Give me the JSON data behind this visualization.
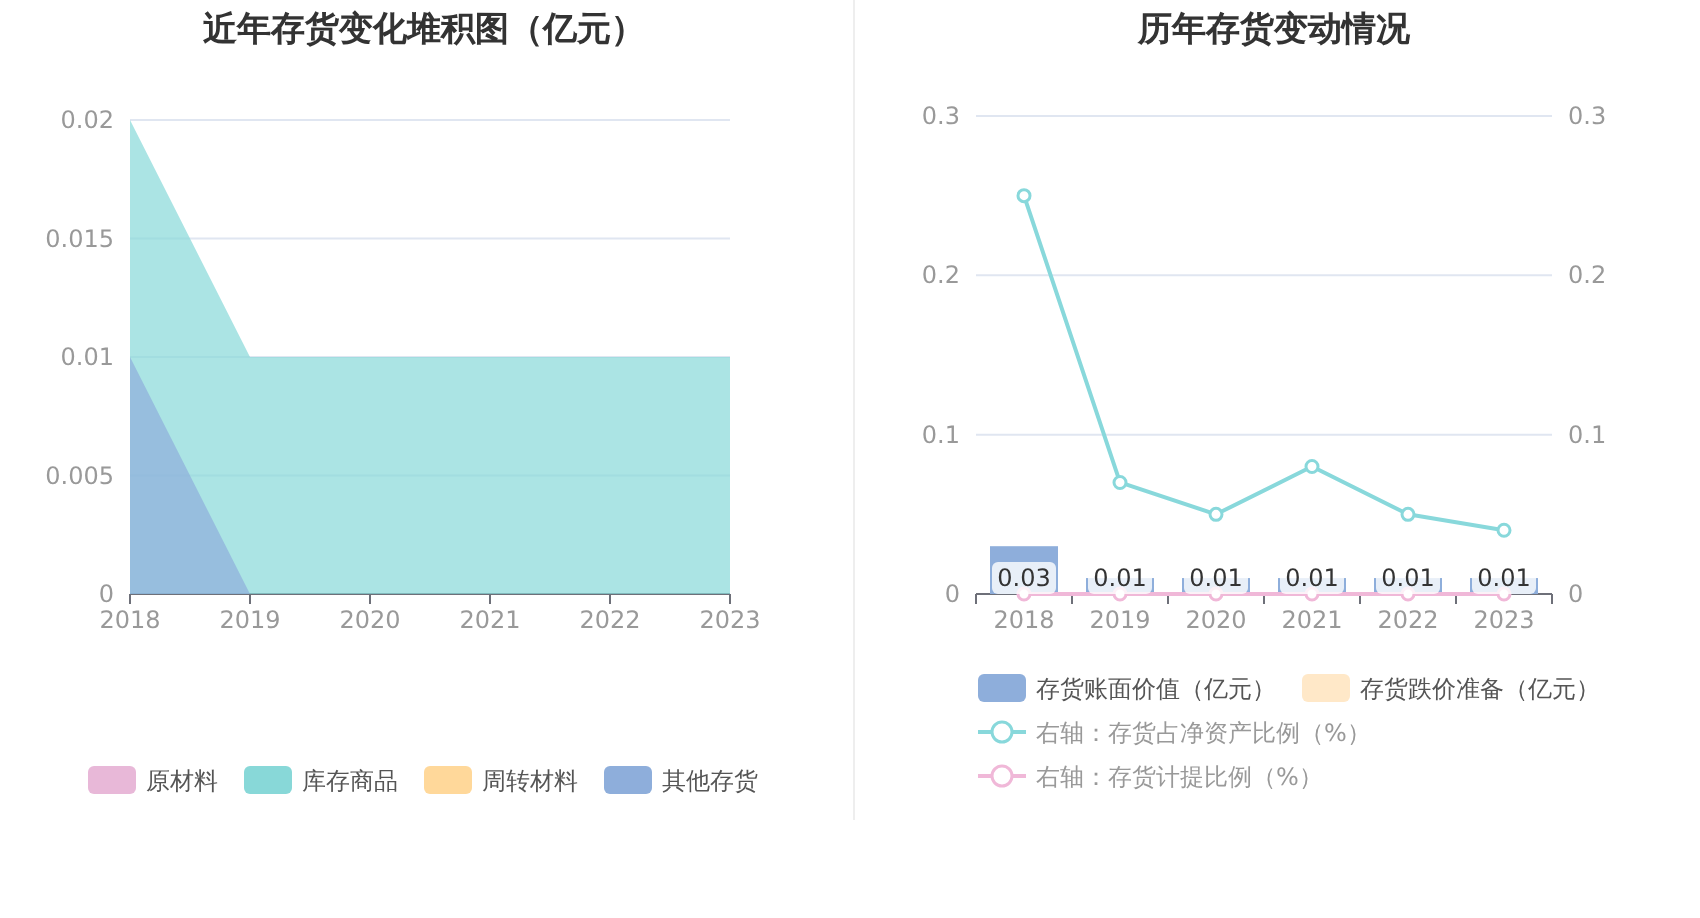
{
  "chart_data": [
    {
      "type": "area",
      "title": "近年存货变化堆积图（亿元）",
      "categories": [
        "2018",
        "2019",
        "2020",
        "2021",
        "2022",
        "2023"
      ],
      "ylim": [
        0,
        0.02
      ],
      "yticks": [
        0,
        0.005,
        0.01,
        0.015,
        0.02
      ],
      "grid": "y",
      "legend": "bottom",
      "series": [
        {
          "name": "原材料",
          "color": "#e8b8d8",
          "values": [
            null,
            null,
            null,
            null,
            null,
            null
          ]
        },
        {
          "name": "库存商品",
          "color": "#88d8d8",
          "values": [
            0.02,
            0.01,
            0.01,
            0.01,
            0.01,
            0.01
          ]
        },
        {
          "name": "周转材料",
          "color": "#ffd89a",
          "values": [
            null,
            null,
            null,
            null,
            null,
            null
          ]
        },
        {
          "name": "其他存货",
          "color": "#8eaedb",
          "values": [
            0.01,
            0,
            0,
            0,
            0,
            0
          ]
        }
      ]
    },
    {
      "type": "bar",
      "title": "历年存货变动情况",
      "categories": [
        "2018",
        "2019",
        "2020",
        "2021",
        "2022",
        "2023"
      ],
      "ylim": [
        0,
        0.3
      ],
      "yticks": [
        0,
        0.1,
        0.2,
        0.3
      ],
      "y2lim": [
        0,
        0.3
      ],
      "y2ticks": [
        0,
        0.1,
        0.2,
        0.3
      ],
      "grid": "y",
      "legend": "bottom",
      "marker": "circle",
      "series": [
        {
          "name": "存货账面价值（亿元）",
          "color": "#8eaedb",
          "values": [
            0.03,
            0.01,
            0.01,
            0.01,
            0.01,
            0.01
          ],
          "value_labels": [
            "0.03",
            "0.01",
            "0.01",
            "0.01",
            "0.01",
            "0.01"
          ]
        },
        {
          "name": "存货跌价准备（亿元）",
          "color": "#ffe8c8",
          "values": [
            0,
            0,
            0,
            0,
            0,
            0
          ]
        },
        {
          "name": "右轴：存货占净资产比例（%）",
          "color": "#88d8db",
          "type": "line",
          "axis": "y2",
          "values": [
            0.25,
            0.07,
            0.05,
            0.08,
            0.05,
            0.04
          ]
        },
        {
          "name": "右轴：存货计提比例（%）",
          "color": "#f0b8d8",
          "type": "line",
          "axis": "y2",
          "values": [
            0,
            0,
            0,
            0,
            0,
            0
          ]
        }
      ]
    }
  ]
}
